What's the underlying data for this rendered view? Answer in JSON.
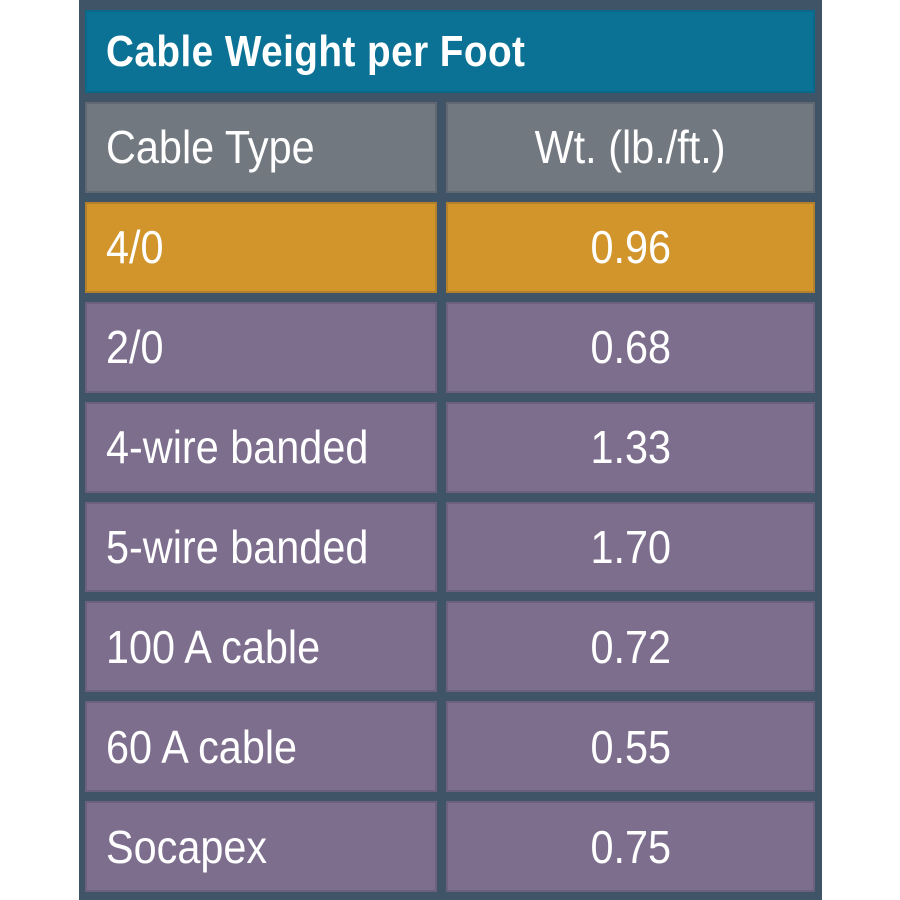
{
  "table": {
    "title": "Cable Weight per Foot",
    "columns": {
      "cable_type": "Cable Type",
      "weight": "Wt. (lb./ft.)"
    },
    "rows": [
      {
        "cable_type": "4/0",
        "weight": "0.96",
        "highlighted": true
      },
      {
        "cable_type": "2/0",
        "weight": "0.68",
        "highlighted": false
      },
      {
        "cable_type": "4-wire banded",
        "weight": "1.33",
        "highlighted": false
      },
      {
        "cable_type": "5-wire banded",
        "weight": "1.70",
        "highlighted": false
      },
      {
        "cable_type": "100 A cable",
        "weight": "0.72",
        "highlighted": false
      },
      {
        "cable_type": "60 A cable",
        "weight": "0.55",
        "highlighted": false
      },
      {
        "cable_type": "Socapex",
        "weight": "0.75",
        "highlighted": false
      }
    ]
  },
  "colors": {
    "page_bg": "#ffffff",
    "frame_bg": "#3f5466",
    "title_bg": "#0b7295",
    "header_bg": "#71787f",
    "row_bg": "#7d6e8d",
    "highlight_bg": "#d2952c",
    "text_color": "#ffffff"
  },
  "chart_data": {
    "type": "table",
    "title": "Cable Weight per Foot",
    "columns": [
      "Cable Type",
      "Wt. (lb./ft.)"
    ],
    "rows": [
      [
        "4/0",
        0.96
      ],
      [
        "2/0",
        0.68
      ],
      [
        "4-wire banded",
        1.33
      ],
      [
        "5-wire banded",
        1.7
      ],
      [
        "100 A cable",
        0.72
      ],
      [
        "60 A cable",
        0.55
      ],
      [
        "Socapex",
        0.75
      ]
    ],
    "units": "lb./ft.",
    "highlighted_row": "4/0"
  }
}
